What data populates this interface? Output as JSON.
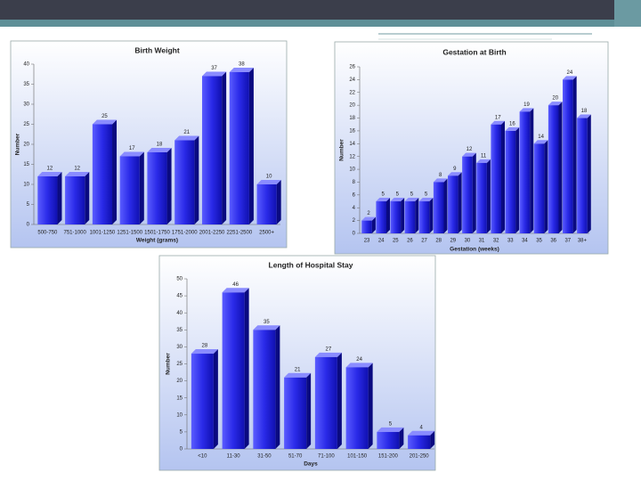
{
  "chart_data": [
    {
      "type": "bar",
      "title": "Birth Weight",
      "x_label": "Weight (grams)",
      "y_label": "Number",
      "categories": [
        "500-750",
        "751-1000",
        "1001-1250",
        "1251-1500",
        "1501-1750",
        "1751-2000",
        "2001-2250",
        "2251-2500",
        "2500+"
      ],
      "values": [
        12,
        12,
        25,
        17,
        18,
        21,
        37,
        38,
        10
      ],
      "color": "#2a2ae8",
      "ylim": [
        0,
        40
      ],
      "yticks": [
        0,
        5,
        10,
        15,
        20,
        25,
        30,
        35,
        40
      ]
    },
    {
      "type": "bar",
      "title": "Gestation at Birth",
      "x_label": "Gestation (weeks)",
      "y_label": "Number",
      "categories": [
        "23",
        "24",
        "25",
        "26",
        "27",
        "28",
        "29",
        "30",
        "31",
        "32",
        "33",
        "34",
        "35",
        "36",
        "37",
        "38+"
      ],
      "values": [
        2,
        5,
        5,
        5,
        5,
        8,
        9,
        12,
        11,
        17,
        16,
        19,
        14,
        20,
        24,
        18
      ],
      "color": "#2a2ae8",
      "ylim": [
        0,
        26
      ],
      "yticks": [
        0,
        2,
        4,
        6,
        8,
        10,
        12,
        14,
        16,
        18,
        20,
        22,
        24,
        26
      ]
    },
    {
      "type": "bar",
      "title": "Length of Hospital Stay",
      "x_label": "Days",
      "y_label": "Number",
      "categories": [
        "<10",
        "11-30",
        "31-50",
        "51-70",
        "71-100",
        "101-150",
        "151-200",
        "201-250"
      ],
      "values": [
        28,
        46,
        35,
        21,
        27,
        24,
        5,
        4
      ],
      "color": "#2a2ae8",
      "ylim": [
        0,
        50
      ],
      "yticks": [
        0,
        5,
        10,
        15,
        20,
        25,
        30,
        35,
        40,
        45,
        50
      ]
    }
  ]
}
